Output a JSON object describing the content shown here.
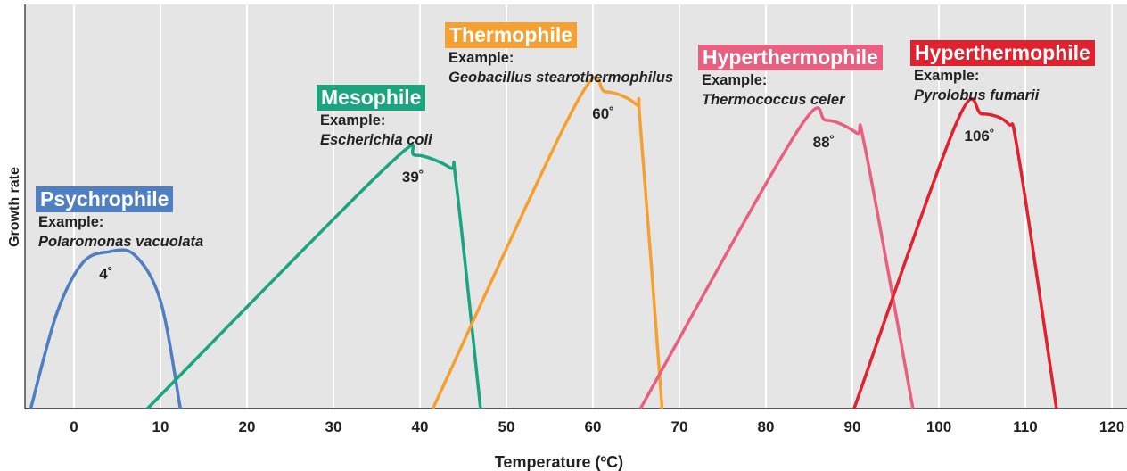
{
  "chart_data": {
    "type": "line",
    "xlabel": "Temperature (ºC)",
    "ylabel": "Growth rate",
    "xlim": [
      -5,
      120
    ],
    "ylim": [
      0,
      10
    ],
    "x_ticks": [
      0,
      10,
      20,
      30,
      40,
      50,
      60,
      70,
      80,
      90,
      100,
      110,
      120
    ],
    "grid": true,
    "y_ticks_shown": false,
    "series": [
      {
        "name": "Psychrophile",
        "example_label": "Example:",
        "example": "Polaromonas vacuolata",
        "peak_label": "4˚",
        "color": "#4f7fc1",
        "points": [
          [
            -5,
            0
          ],
          [
            -2,
            3.0
          ],
          [
            1,
            4.6
          ],
          [
            4,
            4.95
          ],
          [
            7,
            4.85
          ],
          [
            10,
            3.4
          ],
          [
            12.3,
            0
          ]
        ]
      },
      {
        "name": "Mesophile",
        "example_label": "Example:",
        "example": "Escherichia coli",
        "peak_label": "39˚",
        "color": "#1aa580",
        "points": [
          [
            8.5,
            0
          ],
          [
            36,
            7.6
          ],
          [
            39.5,
            8.0
          ],
          [
            43.5,
            7.6
          ],
          [
            44.2,
            7.1
          ],
          [
            47,
            0
          ]
        ]
      },
      {
        "name": "Thermophile",
        "example_label": "Example:",
        "example": "Geobacillus stearothermophilus",
        "peak_label": "60˚",
        "color": "#f5a031",
        "points": [
          [
            41.5,
            0
          ],
          [
            58,
            9.6
          ],
          [
            61.5,
            10.0
          ],
          [
            65,
            9.6
          ],
          [
            65.5,
            8.9
          ],
          [
            68,
            0
          ]
        ]
      },
      {
        "name": "Hyperthermophile",
        "example_label": "Example:",
        "example": "Thermococcus celer",
        "peak_label": "88˚",
        "color": "#e8607f",
        "points": [
          [
            65.5,
            0
          ],
          [
            83.5,
            8.7
          ],
          [
            87,
            9.1
          ],
          [
            90.5,
            8.7
          ],
          [
            91.5,
            8.2
          ],
          [
            97,
            0
          ]
        ]
      },
      {
        "name": "Hyperthermophile",
        "example_label": "Example:",
        "example": "Pyrolobus fumarii",
        "peak_label": "106˚",
        "color": "#e0222e",
        "points": [
          [
            90.2,
            0
          ],
          [
            102,
            9.0
          ],
          [
            105,
            9.3
          ],
          [
            108,
            9.0
          ],
          [
            109.2,
            8.0
          ],
          [
            113.6,
            0
          ]
        ]
      }
    ]
  }
}
